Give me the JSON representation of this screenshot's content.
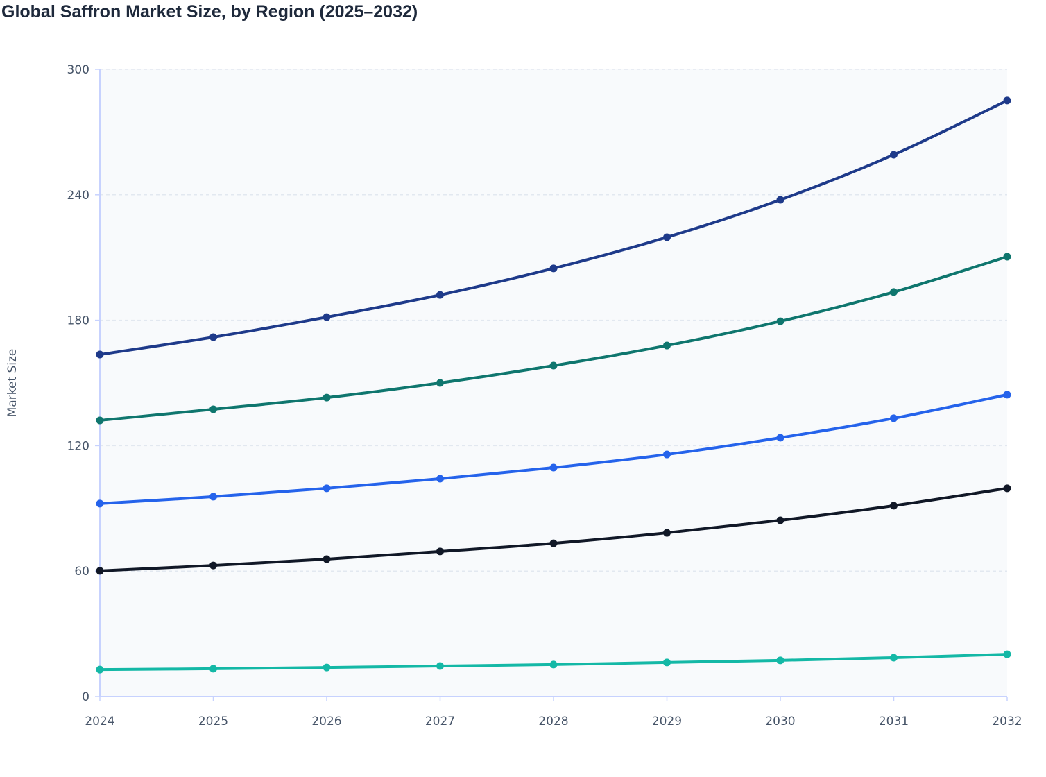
{
  "chart_data": {
    "type": "line",
    "title": "Global Saffron Market Size, by Region (2025–2032)",
    "xlabel": "",
    "ylabel": "Market Size",
    "x": [
      "2024",
      "2025",
      "2026",
      "2027",
      "2028",
      "2029",
      "2030",
      "2031",
      "2032"
    ],
    "ylim": [
      0,
      300
    ],
    "yticks": [
      0,
      60,
      120,
      180,
      240,
      300
    ],
    "grid": true,
    "legend": "none",
    "plot_background": "#f8fafc",
    "series": [
      {
        "color": "#1e3a8a",
        "values": [
          163.6,
          171.9,
          181.5,
          192.1,
          204.8,
          219.7,
          237.6,
          259.2,
          285.1
        ]
      },
      {
        "color": "#0f766e",
        "values": [
          132.1,
          137.4,
          143.0,
          150.0,
          158.3,
          167.9,
          179.5,
          193.5,
          210.4
        ]
      },
      {
        "color": "#2563eb",
        "values": [
          92.3,
          95.6,
          99.6,
          104.2,
          109.5,
          115.8,
          123.8,
          133.1,
          144.4
        ]
      },
      {
        "color": "#111827",
        "values": [
          60.1,
          62.7,
          65.7,
          69.4,
          73.3,
          78.3,
          84.3,
          91.3,
          99.6
        ]
      },
      {
        "color": "#14b8a6",
        "values": [
          12.9,
          13.3,
          13.9,
          14.6,
          15.3,
          16.3,
          17.3,
          18.6,
          20.2
        ]
      }
    ]
  }
}
